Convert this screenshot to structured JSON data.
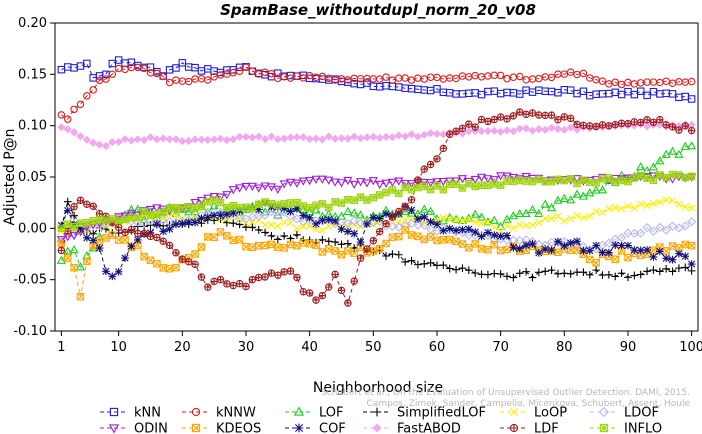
{
  "chart_data": {
    "type": "line",
    "title": "SpamBase_withoutdupl_norm_20_v08",
    "xlabel": "Neighborhood size",
    "ylabel": "Adjusted P@n",
    "xlim": [
      0,
      101
    ],
    "ylim": [
      -0.1,
      0.2
    ],
    "x_ticks": [
      1,
      10,
      20,
      30,
      40,
      50,
      60,
      70,
      80,
      90,
      100
    ],
    "y_ticks": [
      -0.1,
      -0.05,
      0.0,
      0.05,
      0.1,
      0.15,
      0.2
    ],
    "y_tick_labels": [
      "-0.10",
      "-0.05",
      "0.00",
      "0.05",
      "0.10",
      "0.15",
      "0.20"
    ],
    "grid": false,
    "legend_position": "bottom",
    "watermark": [
      "Schubert et al., On the Evaluation of Unsupervised Outlier Detection. DAMI, 2015.",
      "Campos, Zimek, Sander, Campello, Micenkova, Schubert, Assent, Houle"
    ],
    "series": [
      {
        "name": "kNN",
        "color": "#1f1fdc",
        "marker": "square",
        "knots": [
          [
            1,
            0.153
          ],
          [
            3,
            0.158
          ],
          [
            5,
            0.159
          ],
          [
            6,
            0.148
          ],
          [
            8,
            0.15
          ],
          [
            9,
            0.16
          ],
          [
            10,
            0.165
          ],
          [
            12,
            0.16
          ],
          [
            15,
            0.157
          ],
          [
            17,
            0.15
          ],
          [
            19,
            0.157
          ],
          [
            20,
            0.162
          ],
          [
            21,
            0.159
          ],
          [
            22,
            0.155
          ],
          [
            26,
            0.153
          ],
          [
            30,
            0.157
          ],
          [
            33,
            0.15
          ],
          [
            40,
            0.147
          ],
          [
            50,
            0.14
          ],
          [
            55,
            0.135
          ],
          [
            60,
            0.134
          ],
          [
            65,
            0.131
          ],
          [
            75,
            0.133
          ],
          [
            80,
            0.134
          ],
          [
            85,
            0.13
          ],
          [
            90,
            0.132
          ],
          [
            95,
            0.131
          ],
          [
            100,
            0.128
          ]
        ],
        "noise": 0.002
      },
      {
        "name": "kNNW",
        "color": "#dc1f1f",
        "marker": "circle",
        "knots": [
          [
            1,
            0.112
          ],
          [
            2,
            0.105
          ],
          [
            3,
            0.115
          ],
          [
            5,
            0.13
          ],
          [
            7,
            0.143
          ],
          [
            9,
            0.15
          ],
          [
            10,
            0.155
          ],
          [
            13,
            0.158
          ],
          [
            16,
            0.15
          ],
          [
            18,
            0.143
          ],
          [
            25,
            0.147
          ],
          [
            30,
            0.155
          ],
          [
            35,
            0.148
          ],
          [
            45,
            0.146
          ],
          [
            55,
            0.146
          ],
          [
            62,
            0.147
          ],
          [
            70,
            0.148
          ],
          [
            75,
            0.145
          ],
          [
            80,
            0.15
          ],
          [
            83,
            0.151
          ],
          [
            86,
            0.142
          ],
          [
            100,
            0.142
          ]
        ],
        "noise": 0.002
      },
      {
        "name": "LOF",
        "color": "#1fcc1f",
        "marker": "triangle",
        "knots": [
          [
            1,
            -0.03
          ],
          [
            3,
            -0.02
          ],
          [
            4,
            -0.04
          ],
          [
            6,
            -0.015
          ],
          [
            8,
            0.005
          ],
          [
            11,
            0.015
          ],
          [
            15,
            0.012
          ],
          [
            20,
            0.02
          ],
          [
            25,
            0.018
          ],
          [
            30,
            0.02
          ],
          [
            40,
            0.015
          ],
          [
            50,
            0.01
          ],
          [
            55,
            0.018
          ],
          [
            60,
            0.012
          ],
          [
            65,
            0.01
          ],
          [
            70,
            0.005
          ],
          [
            75,
            0.015
          ],
          [
            80,
            0.03
          ],
          [
            85,
            0.04
          ],
          [
            90,
            0.05
          ],
          [
            95,
            0.065
          ],
          [
            100,
            0.08
          ]
        ],
        "noise": 0.005
      },
      {
        "name": "SimplifiedLOF",
        "color": "#000000",
        "marker": "plus",
        "knots": [
          [
            1,
            0.0
          ],
          [
            2,
            0.025
          ],
          [
            3,
            0.015
          ],
          [
            5,
            -0.005
          ],
          [
            7,
            0.0
          ],
          [
            10,
            -0.005
          ],
          [
            14,
            0.002
          ],
          [
            20,
            0.005
          ],
          [
            25,
            0.01
          ],
          [
            30,
            0.0
          ],
          [
            35,
            -0.008
          ],
          [
            40,
            -0.01
          ],
          [
            50,
            -0.02
          ],
          [
            55,
            -0.03
          ],
          [
            60,
            -0.038
          ],
          [
            65,
            -0.04
          ],
          [
            70,
            -0.045
          ],
          [
            75,
            -0.045
          ],
          [
            80,
            -0.042
          ],
          [
            90,
            -0.045
          ],
          [
            100,
            -0.04
          ]
        ],
        "noise": 0.003
      },
      {
        "name": "LoOP",
        "color": "#ffee00",
        "marker": "cross",
        "knots": [
          [
            1,
            -0.005
          ],
          [
            5,
            0.0
          ],
          [
            10,
            0.005
          ],
          [
            15,
            0.012
          ],
          [
            20,
            0.01
          ],
          [
            25,
            0.012
          ],
          [
            30,
            0.008
          ],
          [
            35,
            0.005
          ],
          [
            40,
            0.0
          ],
          [
            50,
            0.005
          ],
          [
            60,
            0.008
          ],
          [
            65,
            0.01
          ],
          [
            70,
            0.0
          ],
          [
            75,
            0.005
          ],
          [
            80,
            0.01
          ],
          [
            85,
            0.015
          ],
          [
            90,
            0.02
          ],
          [
            95,
            0.025
          ],
          [
            100,
            0.023
          ]
        ],
        "noise": 0.003
      },
      {
        "name": "LDOF",
        "color": "#b8b8ee",
        "marker": "diamond",
        "knots": [
          [
            1,
            -0.01
          ],
          [
            5,
            0.0
          ],
          [
            10,
            0.01
          ],
          [
            15,
            0.005
          ],
          [
            20,
            0.008
          ],
          [
            25,
            0.015
          ],
          [
            30,
            0.01
          ],
          [
            35,
            0.015
          ],
          [
            40,
            0.008
          ],
          [
            50,
            0.005
          ],
          [
            60,
            0.0
          ],
          [
            70,
            -0.01
          ],
          [
            80,
            -0.015
          ],
          [
            85,
            -0.02
          ],
          [
            90,
            -0.005
          ],
          [
            95,
            0.0
          ],
          [
            100,
            0.005
          ]
        ],
        "noise": 0.003
      },
      {
        "name": "ODIN",
        "color": "#9f1fd6",
        "marker": "triangle-down",
        "knots": [
          [
            1,
            -0.01
          ],
          [
            5,
            0.0
          ],
          [
            10,
            0.01
          ],
          [
            15,
            0.018
          ],
          [
            20,
            0.02
          ],
          [
            25,
            0.03
          ],
          [
            30,
            0.04
          ],
          [
            35,
            0.04
          ],
          [
            40,
            0.048
          ],
          [
            45,
            0.045
          ],
          [
            50,
            0.045
          ],
          [
            60,
            0.045
          ],
          [
            70,
            0.05
          ],
          [
            80,
            0.047
          ],
          [
            90,
            0.05
          ],
          [
            100,
            0.05
          ]
        ],
        "noise": 0.002
      },
      {
        "name": "KDEOS",
        "color": "#ffa500",
        "marker": "square-x",
        "knots": [
          [
            1,
            -0.015
          ],
          [
            3,
            -0.04
          ],
          [
            4,
            -0.063
          ],
          [
            5,
            -0.03
          ],
          [
            7,
            -0.01
          ],
          [
            10,
            -0.01
          ],
          [
            13,
            -0.02
          ],
          [
            15,
            -0.03
          ],
          [
            18,
            -0.04
          ],
          [
            20,
            -0.03
          ],
          [
            22,
            -0.025
          ],
          [
            24,
            -0.005
          ],
          [
            27,
            -0.005
          ],
          [
            30,
            -0.015
          ],
          [
            35,
            -0.015
          ],
          [
            40,
            -0.018
          ],
          [
            45,
            -0.025
          ],
          [
            50,
            -0.02
          ],
          [
            55,
            -0.005
          ],
          [
            60,
            -0.01
          ],
          [
            65,
            -0.015
          ],
          [
            70,
            -0.02
          ],
          [
            75,
            -0.02
          ],
          [
            80,
            -0.02
          ],
          [
            85,
            -0.03
          ],
          [
            90,
            -0.025
          ],
          [
            95,
            -0.02
          ],
          [
            100,
            -0.015
          ]
        ],
        "noise": 0.004
      },
      {
        "name": "COF",
        "color": "#0f0f7e",
        "marker": "asterisk",
        "knots": [
          [
            1,
            0.0
          ],
          [
            2,
            0.02
          ],
          [
            3,
            0.005
          ],
          [
            5,
            -0.01
          ],
          [
            7,
            -0.02
          ],
          [
            8,
            -0.04
          ],
          [
            9,
            -0.05
          ],
          [
            10,
            -0.045
          ],
          [
            12,
            -0.02
          ],
          [
            15,
            0.0
          ],
          [
            20,
            0.005
          ],
          [
            25,
            0.015
          ],
          [
            30,
            0.02
          ],
          [
            35,
            0.025
          ],
          [
            38,
            0.018
          ],
          [
            40,
            0.01
          ],
          [
            43,
            0.005
          ],
          [
            45,
            0.0
          ],
          [
            48,
            -0.01
          ],
          [
            50,
            0.01
          ],
          [
            55,
            0.02
          ],
          [
            60,
            0.0
          ],
          [
            65,
            -0.005
          ],
          [
            70,
            -0.01
          ],
          [
            75,
            -0.02
          ],
          [
            80,
            -0.015
          ],
          [
            85,
            -0.02
          ],
          [
            90,
            -0.02
          ],
          [
            95,
            -0.025
          ],
          [
            100,
            -0.03
          ]
        ],
        "noise": 0.005
      },
      {
        "name": "FastABOD",
        "color": "#f0a8f0",
        "marker": "diamond-solid",
        "knots": [
          [
            1,
            0.1
          ],
          [
            3,
            0.095
          ],
          [
            5,
            0.085
          ],
          [
            7,
            0.08
          ],
          [
            10,
            0.085
          ],
          [
            15,
            0.088
          ],
          [
            20,
            0.085
          ],
          [
            30,
            0.088
          ],
          [
            40,
            0.088
          ],
          [
            50,
            0.088
          ],
          [
            60,
            0.092
          ],
          [
            70,
            0.095
          ],
          [
            80,
            0.097
          ],
          [
            90,
            0.1
          ],
          [
            100,
            0.1
          ]
        ],
        "noise": 0.0015
      },
      {
        "name": "LDF",
        "color": "#a01f1f",
        "marker": "circle-plus",
        "knots": [
          [
            1,
            -0.02
          ],
          [
            2,
            0.0
          ],
          [
            3,
            0.02
          ],
          [
            4,
            0.03
          ],
          [
            6,
            0.02
          ],
          [
            8,
            0.01
          ],
          [
            10,
            0.0
          ],
          [
            14,
            -0.005
          ],
          [
            18,
            -0.015
          ],
          [
            20,
            -0.03
          ],
          [
            22,
            -0.035
          ],
          [
            23,
            -0.05
          ],
          [
            24,
            -0.058
          ],
          [
            26,
            -0.048
          ],
          [
            28,
            -0.055
          ],
          [
            30,
            -0.055
          ],
          [
            32,
            -0.05
          ],
          [
            34,
            -0.045
          ],
          [
            37,
            -0.04
          ],
          [
            39,
            -0.06
          ],
          [
            41,
            -0.07
          ],
          [
            43,
            -0.06
          ],
          [
            44,
            -0.045
          ],
          [
            45,
            -0.06
          ],
          [
            46,
            -0.07
          ],
          [
            48,
            -0.03
          ],
          [
            50,
            -0.01
          ],
          [
            53,
            0.01
          ],
          [
            56,
            0.03
          ],
          [
            58,
            0.06
          ],
          [
            60,
            0.07
          ],
          [
            62,
            0.09
          ],
          [
            65,
            0.1
          ],
          [
            70,
            0.108
          ],
          [
            75,
            0.113
          ],
          [
            80,
            0.106
          ],
          [
            85,
            0.1
          ],
          [
            90,
            0.103
          ],
          [
            95,
            0.104
          ],
          [
            100,
            0.095
          ]
        ],
        "noise": 0.003
      },
      {
        "name": "INFLO",
        "color": "#9fd40f",
        "marker": "square-cross",
        "knots": [
          [
            1,
            0.0
          ],
          [
            5,
            0.005
          ],
          [
            10,
            0.01
          ],
          [
            15,
            0.015
          ],
          [
            20,
            0.02
          ],
          [
            25,
            0.025
          ],
          [
            30,
            0.02
          ],
          [
            35,
            0.025
          ],
          [
            40,
            0.02
          ],
          [
            45,
            0.025
          ],
          [
            50,
            0.03
          ],
          [
            55,
            0.038
          ],
          [
            60,
            0.04
          ],
          [
            70,
            0.045
          ],
          [
            80,
            0.045
          ],
          [
            90,
            0.048
          ],
          [
            100,
            0.052
          ]
        ],
        "noise": 0.003
      }
    ]
  }
}
